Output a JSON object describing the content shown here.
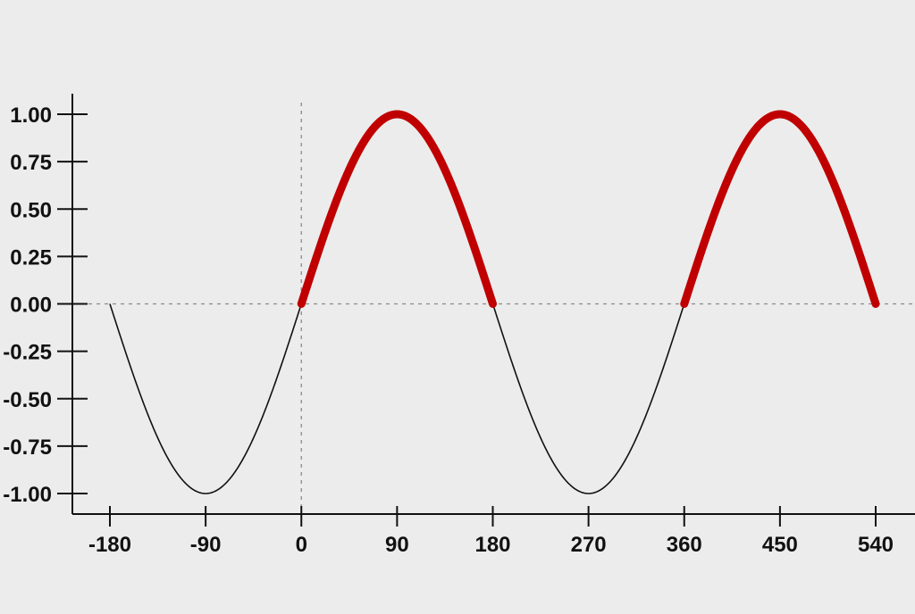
{
  "chart_data": {
    "type": "line",
    "title": "",
    "xlabel": "",
    "ylabel": "",
    "xlim": [
      -180,
      540
    ],
    "ylim": [
      -1.0,
      1.0
    ],
    "x_ticks": [
      -180,
      -90,
      0,
      90,
      180,
      270,
      360,
      450,
      540
    ],
    "x_tick_labels": [
      "-180",
      "-90",
      "0",
      "90",
      "180",
      "270",
      "360",
      "450",
      "540"
    ],
    "y_ticks": [
      1.0,
      0.75,
      0.5,
      0.25,
      0.0,
      -0.25,
      -0.5,
      -0.75,
      -1.0
    ],
    "y_tick_labels": [
      "1.00",
      "0.75",
      "0.50",
      "0.25",
      "0.00",
      "-0.25",
      "-0.50",
      "-0.75",
      "-1.00"
    ],
    "grid": false,
    "reference_lines": {
      "horizontal_y": 0,
      "vertical_x": 0,
      "style": "dotted"
    },
    "series": [
      {
        "function": "sine",
        "x": [
          -180,
          -90,
          0,
          90,
          180,
          270,
          360,
          450,
          540
        ],
        "y": [
          0,
          -1,
          0,
          1,
          0,
          -1,
          0,
          1,
          0
        ],
        "color": "#111111",
        "highlight_intervals": [
          [
            0,
            180
          ],
          [
            360,
            540
          ]
        ],
        "highlight_color": "#c00000"
      }
    ]
  }
}
